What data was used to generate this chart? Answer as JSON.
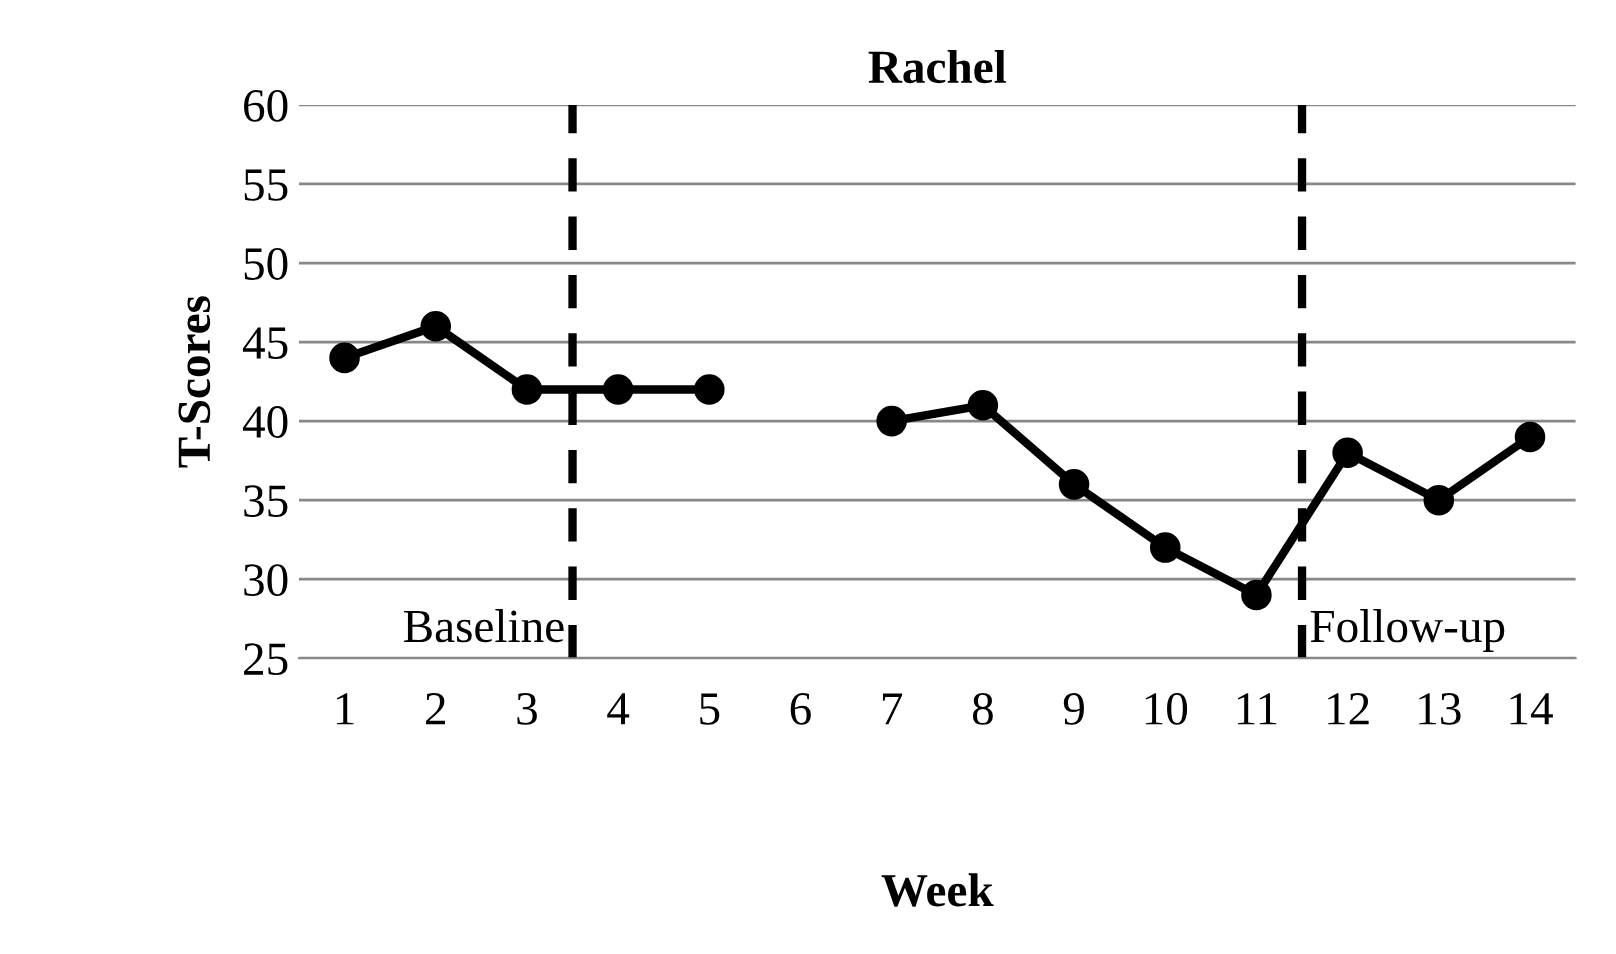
{
  "chart_data": {
    "type": "line",
    "title": "Rachel",
    "xlabel": "Week",
    "ylabel": "T-Scores",
    "x": [
      1,
      2,
      3,
      4,
      5,
      6,
      7,
      8,
      9,
      10,
      11,
      12,
      13,
      14
    ],
    "series": [
      {
        "color": "#000000",
        "values": [
          44,
          46,
          42,
          42,
          42,
          null,
          40,
          41,
          36,
          32,
          29,
          38,
          35,
          39
        ]
      }
    ],
    "xlim": [
      0.5,
      14.5
    ],
    "xticks": [
      1,
      2,
      3,
      4,
      5,
      6,
      7,
      8,
      9,
      10,
      11,
      12,
      13,
      14
    ],
    "ylim": [
      25,
      60
    ],
    "yticks": [
      25,
      30,
      35,
      40,
      45,
      50,
      55,
      60
    ],
    "ref_lines": [
      {
        "axis": "x",
        "value": 3.5,
        "label": "Baseline",
        "color": "#000000",
        "line_style": "dashed"
      },
      {
        "axis": "x",
        "value": 11.5,
        "label": "Follow-up",
        "color": "#000000",
        "line_style": "dashed"
      }
    ],
    "grid": "y",
    "marker": "circle",
    "line_style": "solid"
  }
}
